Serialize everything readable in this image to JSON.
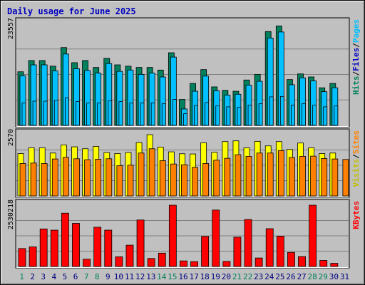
{
  "chart_data": {
    "type": "bar",
    "title": "Daily usage for June 2025",
    "categories": [
      "1",
      "2",
      "3",
      "4",
      "5",
      "6",
      "7",
      "8",
      "9",
      "10",
      "11",
      "12",
      "13",
      "14",
      "15",
      "16",
      "17",
      "18",
      "19",
      "20",
      "21",
      "22",
      "23",
      "24",
      "25",
      "26",
      "27",
      "28",
      "29",
      "30",
      "31"
    ],
    "weekend_days": [
      1,
      7,
      8,
      14,
      15,
      21,
      22,
      28,
      29
    ],
    "colors": {
      "hits": "#00805c",
      "files": "#00c0ff",
      "pages": "#00c0ff",
      "visits": "#ffff00",
      "sites": "#ff8000",
      "kbytes": "#ff0000",
      "weekday_label": "#000080",
      "weekend_label": "#00805c"
    },
    "panels": [
      {
        "name": "hits-files-pages",
        "ymax_label": "23557",
        "ymax": 23557,
        "legend": [
          {
            "label": "Hits",
            "color": "#00805c"
          },
          {
            "label": "/",
            "color": "#000000"
          },
          {
            "label": "Files",
            "color": "#0000c0"
          },
          {
            "label": "/",
            "color": "#000000"
          },
          {
            "label": "Pages",
            "color": "#00c0ff"
          }
        ],
        "series": [
          {
            "name": "Hits",
            "color": "#00805c",
            "values": [
              12400,
              15000,
              15000,
              13700,
              18000,
              14500,
              15000,
              13400,
              15500,
              14000,
              13700,
              13400,
              13400,
              12800,
              16800,
              6000,
              9700,
              12900,
              8900,
              8100,
              7900,
              10500,
              11800,
              21700,
              23000,
              10600,
              11900,
              11200,
              8700,
              9700,
              0
            ]
          },
          {
            "name": "Files",
            "color": "#00c0ff",
            "values": [
              11500,
              14000,
              14000,
              12600,
              16500,
              13100,
              12700,
              12100,
              14300,
              12500,
              12800,
              11800,
              12100,
              11200,
              15800,
              3800,
              7900,
              11400,
              8000,
              7000,
              7200,
              9300,
              10200,
              20200,
              21600,
              9400,
              11000,
              10300,
              7800,
              8700,
              0
            ]
          },
          {
            "name": "Pages",
            "color": "#00c0ff",
            "values": [
              5200,
              5600,
              5600,
              5800,
              6400,
              5500,
              5200,
              5200,
              5700,
              5500,
              5200,
              5200,
              5200,
              5000,
              6000,
              2700,
              4600,
              5300,
              4500,
              4300,
              4200,
              4700,
              5000,
              6600,
              6700,
              4700,
              5000,
              4700,
              4300,
              4500,
              0
            ]
          }
        ]
      },
      {
        "name": "visits-sites",
        "ymax_label": "2570",
        "ymax": 2570,
        "legend": [
          {
            "label": "Visits",
            "color": "#c0c000"
          },
          {
            "label": "/",
            "color": "#000000"
          },
          {
            "label": "Sites",
            "color": "#ff8000"
          }
        ],
        "series": [
          {
            "name": "Visits",
            "color": "#ffff00",
            "values": [
              1780,
              2020,
              2020,
              1800,
              2140,
              2060,
              1980,
              2080,
              1820,
              1780,
              1820,
              2240,
              2570,
              2050,
              1850,
              1770,
              1760,
              2230,
              1830,
              2280,
              2310,
              2020,
              2290,
              2100,
              2280,
              1950,
              2220,
              2020,
              1780,
              1800,
              0
            ]
          },
          {
            "name": "Sites",
            "color": "#ff8000",
            "values": [
              1360,
              1380,
              1360,
              1550,
              1620,
              1560,
              1520,
              1540,
              1560,
              1270,
              1290,
              1800,
              1980,
              1480,
              1340,
              1310,
              1200,
              1360,
              1500,
              1580,
              1730,
              1660,
              1800,
              1800,
              1900,
              1610,
              1660,
              1670,
              1570,
              1550,
              1530
            ]
          }
        ]
      },
      {
        "name": "kbytes",
        "ymax_label": "2530218",
        "ymax": 2530218,
        "legend": [
          {
            "label": "KBytes",
            "color": "#ff0000"
          }
        ],
        "series": [
          {
            "name": "KBytes",
            "color": "#ff0000",
            "values": [
              740000,
              810000,
              1550000,
              1500000,
              2200000,
              1780000,
              300000,
              1620000,
              1500000,
              400000,
              880000,
              1920000,
              330000,
              550000,
              2530218,
              230000,
              200000,
              1240000,
              2330000,
              210000,
              1210000,
              1940000,
              350000,
              1560000,
              1250000,
              580000,
              410000,
              2530218,
              250000,
              130000,
              0
            ]
          }
        ]
      }
    ]
  }
}
